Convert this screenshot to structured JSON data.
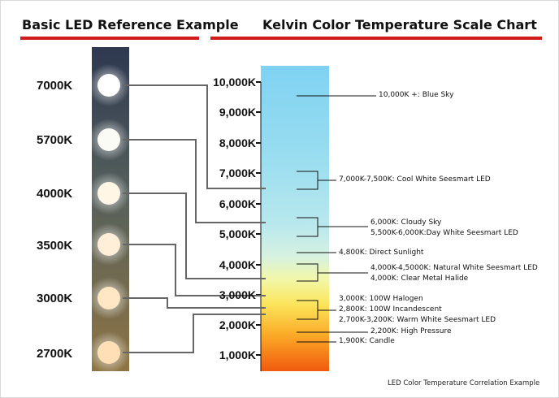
{
  "titles": {
    "left": "Basic LED Reference Example",
    "right": "Kelvin Color Temperature Scale Chart"
  },
  "accent_color": "#d01b1b",
  "led_strip": {
    "labels": [
      "7000K",
      "5700K",
      "4000K",
      "3500K",
      "3000K",
      "2700K"
    ],
    "led_colors": [
      "#ffffff",
      "#fbfbf6",
      "#fff6e6",
      "#ffeed8",
      "#ffe7c5",
      "#ffe0b6"
    ],
    "strip_top_color": "#2e3850",
    "strip_bottom_color": "#8e7443"
  },
  "scale": {
    "ticks": [
      "10,000K",
      "9,000K",
      "8,000K",
      "7,000K",
      "6,000K",
      "5,000K",
      "4,000K",
      "3,000K",
      "2,000K",
      "1,000K"
    ],
    "gradient_colors": [
      "#7fd2f2",
      "#99ddf0",
      "#b8e8ed",
      "#d5f1e2",
      "#f2f7a8",
      "#fbe55c",
      "#fbab28",
      "#f05a0d"
    ]
  },
  "annotations": {
    "blue_sky": "10,000K +: Blue Sky",
    "cool_white": "7,000K-7,500K: Cool White Seesmart LED",
    "cloudy_sky": "6,000K: Cloudy Sky",
    "day_white": "5,500K-6,000K:Day White Seesmart LED",
    "direct_sunlight": "4,800K: Direct Sunlight",
    "natural_white": "4,000K-4,5000K: Natural White Seesmart LED",
    "metal_halide": "4,000K: Clear Metal Halide",
    "halogen": "3,000K: 100W Halogen",
    "incandescent": "2,800K: 100W Incandescent",
    "warm_white": "2,700K-3,200K: Warm White Seesmart LED",
    "high_pressure": "2,200K: High Pressure",
    "candle": "1,900K: Candle"
  },
  "footer": "LED Color Temperature Correlation Example"
}
